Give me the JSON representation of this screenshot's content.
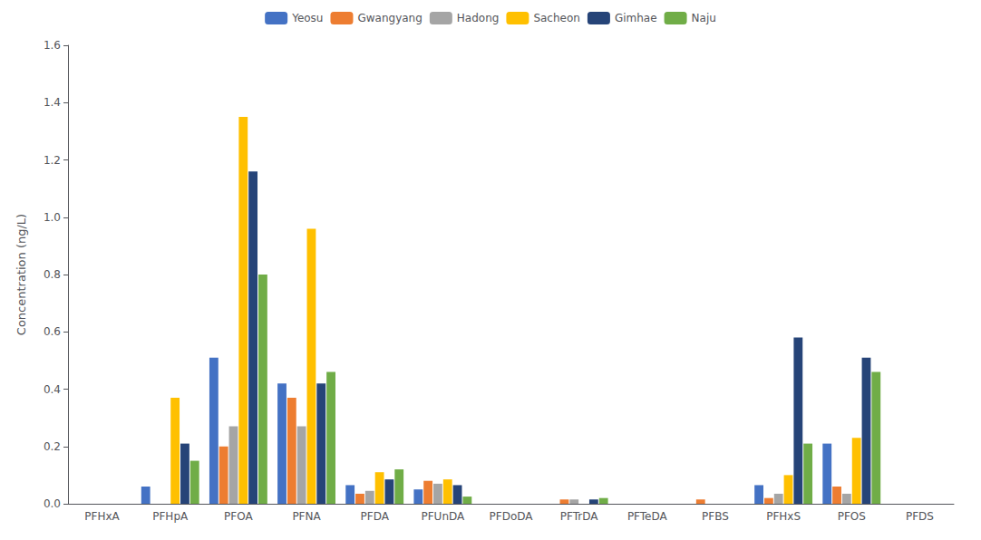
{
  "chart_data": {
    "type": "bar",
    "categories": [
      "PFHxA",
      "PFHpA",
      "PFOA",
      "PFNA",
      "PFDA",
      "PFUnDA",
      "PFDoDA",
      "PFTrDA",
      "PFTeDA",
      "PFBS",
      "PFHxS",
      "PFOS",
      "PFDS"
    ],
    "series": [
      {
        "name": "Yeosu",
        "color": "#4472C4",
        "values": [
          0.0,
          0.06,
          0.51,
          0.42,
          0.065,
          0.05,
          0.0,
          0.0,
          0.0,
          0.0,
          0.065,
          0.21,
          0.0
        ]
      },
      {
        "name": "Gwangyang",
        "color": "#ED7D31",
        "values": [
          0.0,
          0.0,
          0.2,
          0.37,
          0.035,
          0.08,
          0.0,
          0.015,
          0.0,
          0.015,
          0.02,
          0.06,
          0.0
        ]
      },
      {
        "name": "Hadong",
        "color": "#A5A5A5",
        "values": [
          0.0,
          0.0,
          0.27,
          0.27,
          0.045,
          0.07,
          0.0,
          0.015,
          0.0,
          0.0,
          0.035,
          0.035,
          0.0
        ]
      },
      {
        "name": "Sacheon",
        "color": "#FFC000",
        "values": [
          0.0,
          0.37,
          1.35,
          0.96,
          0.11,
          0.085,
          0.0,
          0.0,
          0.0,
          0.0,
          0.1,
          0.23,
          0.0
        ]
      },
      {
        "name": "Gimhae",
        "color": "#264478",
        "values": [
          0.0,
          0.21,
          1.16,
          0.42,
          0.085,
          0.065,
          0.0,
          0.015,
          0.0,
          0.0,
          0.58,
          0.51,
          0.0
        ]
      },
      {
        "name": "Naju",
        "color": "#70AD47",
        "values": [
          0.0,
          0.15,
          0.8,
          0.46,
          0.12,
          0.025,
          0.0,
          0.02,
          0.0,
          0.0,
          0.21,
          0.46,
          0.0
        ]
      }
    ],
    "ylabel": "Concentration (ng/L)",
    "ylim": [
      0,
      1.6
    ],
    "yticks": [
      {
        "value": 0,
        "label": "0.0"
      },
      0.2,
      0.4,
      0.6,
      0.8,
      {
        "value": 1,
        "label": "1.0"
      },
      1.2,
      1.4,
      1.6
    ],
    "grid": false,
    "legend": "top"
  }
}
